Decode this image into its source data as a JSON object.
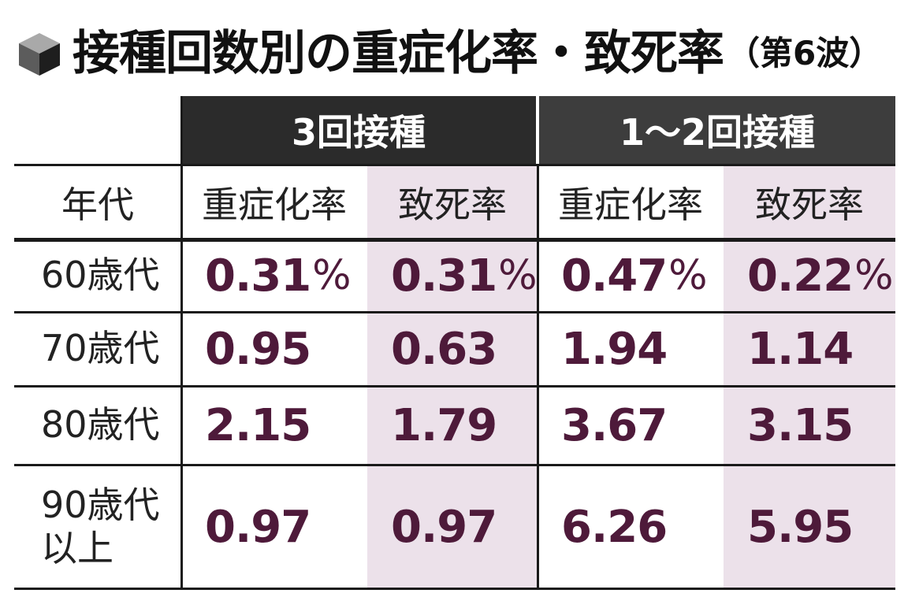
{
  "title": {
    "main": "接種回数別の重症化率・致死率",
    "sub": "（第6波）"
  },
  "icons": {
    "title_marker": "cube-icon"
  },
  "colors": {
    "value_text": "#4e1a3a",
    "pink_column": "#ece1ea",
    "group_header_bg": "#2b2b2b"
  },
  "chart_data": {
    "type": "table",
    "title": "接種回数別の重症化率・致死率（第6波）",
    "row_header_label": "年代",
    "groups": [
      {
        "name": "3回接種",
        "columns": [
          "重症化率",
          "致死率"
        ]
      },
      {
        "name": "1～2回接種",
        "columns": [
          "重症化率",
          "致死率"
        ]
      }
    ],
    "rows": [
      {
        "label": [
          "60歳代"
        ],
        "values": [
          "0.31",
          "0.31",
          "0.47",
          "0.22"
        ],
        "unit": "%"
      },
      {
        "label": [
          "70歳代"
        ],
        "values": [
          "0.95",
          "0.63",
          "1.94",
          "1.14"
        ],
        "unit": ""
      },
      {
        "label": [
          "80歳代"
        ],
        "values": [
          "2.15",
          "1.79",
          "3.67",
          "3.15"
        ],
        "unit": ""
      },
      {
        "label": [
          "90歳代",
          "以上"
        ],
        "values": [
          "0.97",
          "0.97",
          "6.26",
          "5.95"
        ],
        "unit": ""
      }
    ]
  }
}
